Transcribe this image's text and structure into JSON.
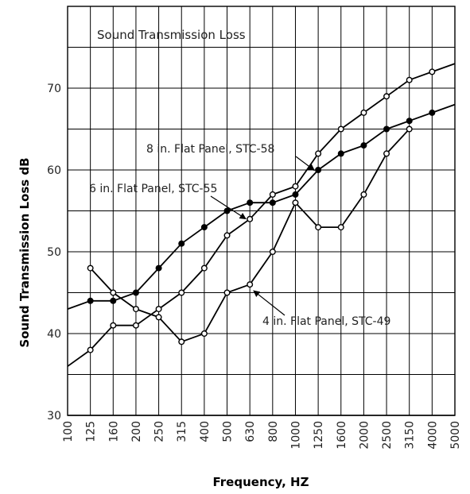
{
  "chart_data": {
    "type": "line",
    "title": "Sound Transmission Loss",
    "xlabel": "Frequency, HZ",
    "ylabel": "Sound Transmission Loss dB",
    "categories": [
      "100",
      "125",
      "160",
      "200",
      "250",
      "315",
      "400",
      "500",
      "630",
      "800",
      "1000",
      "1250",
      "1600",
      "2000",
      "2500",
      "3150",
      "4000",
      "5000"
    ],
    "yticks": [
      30,
      40,
      50,
      60,
      70
    ],
    "ylim": [
      30,
      80
    ],
    "grid": true,
    "series": [
      {
        "name": "4 in. Flat Panel, STC-49",
        "marker": "open",
        "values": [
          null,
          48,
          45,
          43,
          42,
          39,
          40,
          45,
          46,
          50,
          56,
          53,
          53,
          57,
          62,
          65,
          null,
          null
        ]
      },
      {
        "name": "6 in. Flat Panel, STC-55",
        "marker": "open",
        "line_start": 36,
        "values": [
          null,
          38,
          41,
          41,
          43,
          45,
          48,
          52,
          54,
          57,
          58,
          62,
          65,
          67,
          69,
          71,
          72,
          null
        ],
        "line_end": 73
      },
      {
        "name": "8 in. Flat Panel, STC-58",
        "marker": "filled",
        "line_start": 43,
        "values": [
          null,
          44,
          44,
          45,
          48,
          51,
          53,
          55,
          56,
          56,
          57,
          60,
          62,
          63,
          65,
          66,
          67,
          null
        ],
        "line_end": 68
      }
    ],
    "annotations": [
      {
        "text": "8 in. Flat Panel, STC-58",
        "series": "8 in. Flat Panel, STC-58"
      },
      {
        "text": "6 in. Flat Panel, STC-55",
        "series": "6 in. Flat Panel, STC-55"
      },
      {
        "text": "4 in. Flat Panel, STC-49",
        "series": "4 in. Flat Panel, STC-49"
      }
    ],
    "colors": {
      "line": "#000000",
      "grid": "#000000",
      "background": "#ffffff"
    }
  }
}
